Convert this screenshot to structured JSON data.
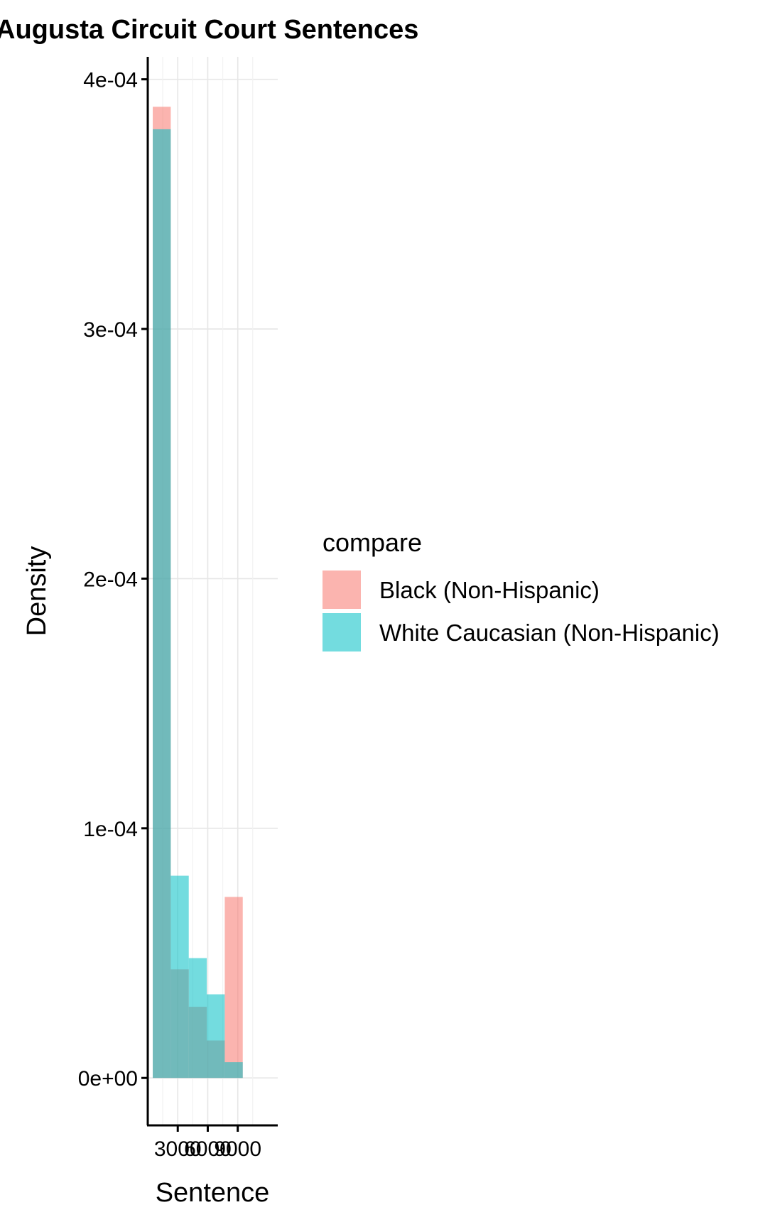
{
  "chart_data": {
    "type": "histogram",
    "title": "Augusta Circuit Court Sentences",
    "xlabel": "Sentence",
    "ylabel": "Density",
    "xlim": [
      0,
      13000
    ],
    "ylim": [
      -1.9e-05,
      0.000409
    ],
    "x_ticks": [
      {
        "value": 3000,
        "label": "3000"
      },
      {
        "value": 6000,
        "label": "6000"
      },
      {
        "value": 9000,
        "label": "9000"
      }
    ],
    "y_ticks": [
      {
        "value": 0,
        "label": "0e+00"
      },
      {
        "value": 0.0001,
        "label": "1e-04"
      },
      {
        "value": 0.0002,
        "label": "2e-04"
      },
      {
        "value": 0.0003,
        "label": "3e-04"
      },
      {
        "value": 0.0004,
        "label": "4e-04"
      }
    ],
    "bins": [
      [
        500,
        2300
      ],
      [
        2300,
        4100
      ],
      [
        4100,
        5900
      ],
      [
        5900,
        7700
      ],
      [
        7700,
        9500
      ]
    ],
    "series": [
      {
        "name": "Black (Non-Hispanic)",
        "color": "#F8766D",
        "values": [
          0.000389,
          4.35e-05,
          2.85e-05,
          1.5e-05,
          7.25e-05
        ]
      },
      {
        "name": "White Caucasian (Non-Hispanic)",
        "color": "#00BFC4",
        "values": [
          0.00038,
          8.1e-05,
          4.8e-05,
          3.35e-05,
          6.3e-06
        ]
      }
    ],
    "legend": {
      "title": "compare",
      "position": "right"
    },
    "grid": true
  }
}
